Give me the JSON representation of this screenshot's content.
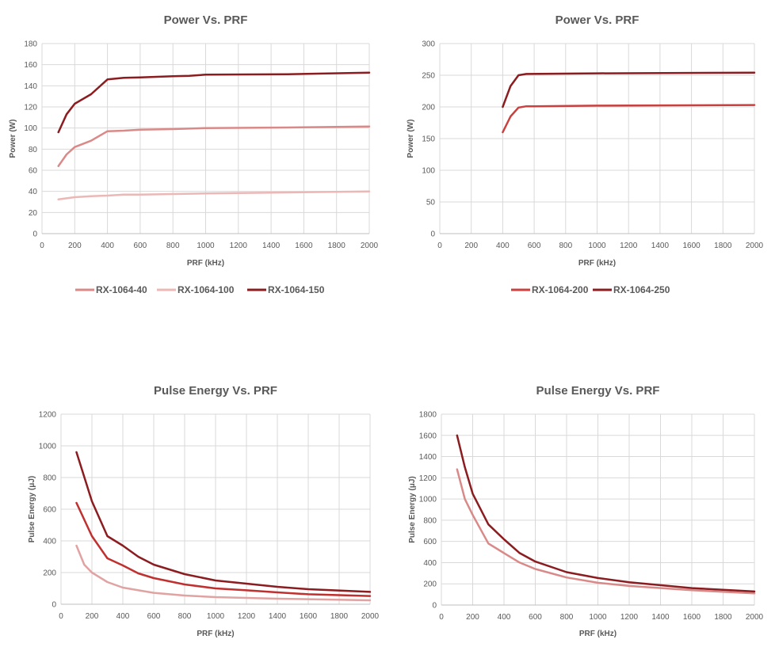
{
  "chart_data": [
    {
      "type": "line",
      "title": "Power Vs. PRF",
      "xlabel": "PRF (kHz)",
      "ylabel": "Power (W)",
      "xlim": [
        0,
        2000
      ],
      "ylim": [
        0,
        180
      ],
      "xticks": [
        0,
        200,
        400,
        600,
        800,
        1000,
        1200,
        1400,
        1600,
        1800,
        2000
      ],
      "yticks": [
        0,
        20,
        40,
        60,
        80,
        100,
        120,
        140,
        160,
        180
      ],
      "grid": true,
      "legend": "bottom",
      "series": [
        {
          "name": "RX-1064-40",
          "color": "#d98a88",
          "x": [
            100,
            150,
            200,
            300,
            400,
            500,
            600,
            800,
            1000,
            1500,
            2000
          ],
          "y": [
            64,
            75,
            82,
            88,
            97,
            97.5,
            98.5,
            99,
            100,
            100.5,
            101.5
          ]
        },
        {
          "name": "RX-1064-100",
          "color": "#ebb8b6",
          "x": [
            100,
            200,
            300,
            400,
            500,
            600,
            800,
            1000,
            1500,
            2000
          ],
          "y": [
            32.5,
            34.5,
            35.5,
            36,
            37,
            37,
            37.5,
            38,
            39,
            40
          ]
        },
        {
          "name": "RX-1064-150",
          "color": "#8b1c1f",
          "x": [
            100,
            150,
            200,
            300,
            400,
            500,
            600,
            800,
            900,
            1000,
            1500,
            2000
          ],
          "y": [
            96,
            113,
            123,
            132,
            146,
            147.5,
            148,
            149,
            149.5,
            150.5,
            151,
            152.5
          ]
        }
      ]
    },
    {
      "type": "line",
      "title": "Power Vs. PRF",
      "xlabel": "PRF (kHz)",
      "ylabel": "Power (W)",
      "xlim": [
        0,
        2000
      ],
      "ylim": [
        0,
        300
      ],
      "xticks": [
        0,
        200,
        400,
        600,
        800,
        1000,
        1200,
        1400,
        1600,
        1800,
        2000
      ],
      "yticks": [
        0,
        50,
        100,
        150,
        200,
        250,
        300
      ],
      "grid": true,
      "legend": "bottom",
      "series": [
        {
          "name": "RX-1064-200",
          "color": "#c9403f",
          "x": [
            400,
            450,
            500,
            550,
            600,
            1000,
            2000
          ],
          "y": [
            160,
            185,
            199,
            201,
            201,
            202,
            203
          ]
        },
        {
          "name": "RX-1064-250",
          "color": "#8b1c1f",
          "x": [
            400,
            450,
            500,
            550,
            1000,
            2000
          ],
          "y": [
            200,
            233,
            250,
            252,
            253,
            254
          ]
        }
      ]
    },
    {
      "type": "line",
      "title": "Pulse Energy Vs. PRF",
      "xlabel": "PRF (kHz)",
      "ylabel": "Pulse Energy (μJ)",
      "xlim": [
        0,
        2000
      ],
      "ylim": [
        0,
        1200
      ],
      "xticks": [
        0,
        200,
        400,
        600,
        800,
        1000,
        1200,
        1400,
        1600,
        1800,
        2000
      ],
      "yticks": [
        0,
        200,
        400,
        600,
        800,
        1000,
        1200
      ],
      "grid": true,
      "legend": "none",
      "series": [
        {
          "color": "#e0a3a2",
          "x": [
            100,
            150,
            200,
            300,
            400,
            600,
            800,
            1000,
            1400,
            2000
          ],
          "y": [
            370,
            250,
            200,
            140,
            105,
            72,
            55,
            45,
            35,
            25
          ]
        },
        {
          "color": "#c0302f",
          "x": [
            100,
            200,
            300,
            400,
            500,
            600,
            800,
            1000,
            1200,
            1400,
            1600,
            2000
          ],
          "y": [
            640,
            430,
            290,
            245,
            195,
            165,
            125,
            100,
            88,
            75,
            63,
            52
          ]
        },
        {
          "color": "#8b1c1f",
          "x": [
            100,
            200,
            300,
            400,
            500,
            600,
            800,
            1000,
            1200,
            1400,
            1600,
            2000
          ],
          "y": [
            960,
            650,
            430,
            370,
            300,
            250,
            190,
            150,
            130,
            110,
            95,
            78
          ]
        }
      ]
    },
    {
      "type": "line",
      "title": "Pulse Energy Vs. PRF",
      "xlabel": "PRF (kHz)",
      "ylabel": "Pulse Energy (μJ)",
      "xlim": [
        0,
        2000
      ],
      "ylim": [
        0,
        1800
      ],
      "xticks": [
        0,
        200,
        400,
        600,
        800,
        1000,
        1200,
        1400,
        1600,
        1800,
        2000
      ],
      "yticks": [
        0,
        200,
        400,
        600,
        800,
        1000,
        1200,
        1400,
        1600,
        1800
      ],
      "grid": true,
      "legend": "none",
      "series": [
        {
          "color": "#d98a88",
          "x": [
            100,
            150,
            200,
            300,
            400,
            500,
            600,
            800,
            1000,
            1200,
            1600,
            2000
          ],
          "y": [
            1280,
            1000,
            850,
            580,
            490,
            400,
            340,
            260,
            210,
            180,
            140,
            110
          ]
        },
        {
          "color": "#8b1c1f",
          "x": [
            100,
            150,
            200,
            300,
            400,
            500,
            600,
            800,
            1000,
            1200,
            1600,
            2000
          ],
          "y": [
            1600,
            1300,
            1050,
            760,
            620,
            490,
            410,
            310,
            255,
            215,
            160,
            128
          ]
        }
      ]
    }
  ]
}
